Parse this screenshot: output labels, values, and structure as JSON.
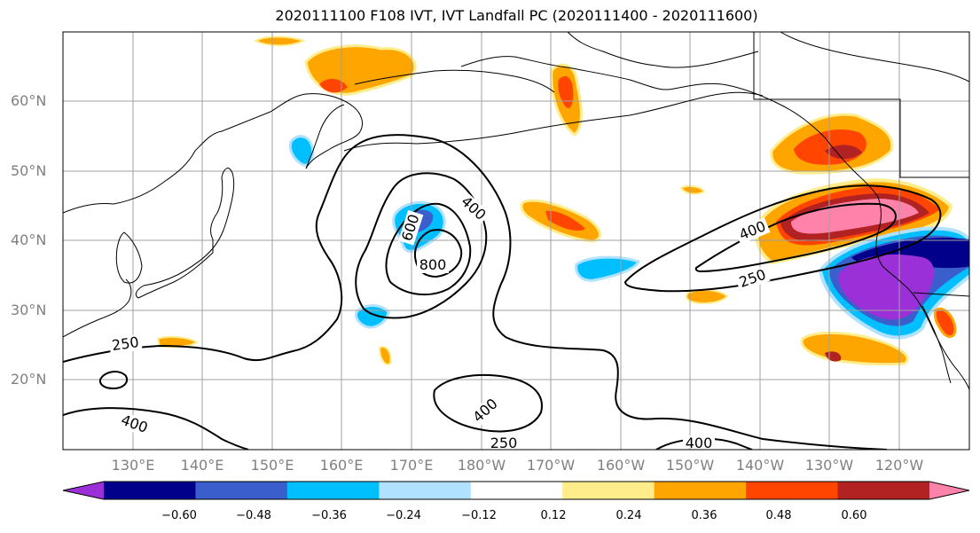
{
  "title": "2020111100 F108 IVT, IVT Landfall PC (2020111400 - 2020111600)",
  "lat_labels": [
    "60°N",
    "50°N",
    "40°N",
    "30°N",
    "20°N"
  ],
  "lon_labels": [
    "130°E",
    "140°E",
    "150°E",
    "160°E",
    "170°E",
    "180°W",
    "170°W",
    "160°W",
    "150°W",
    "140°W",
    "130°W",
    "120°W"
  ],
  "contour_labels": [
    "400",
    "600",
    "800",
    "400",
    "250",
    "250",
    "400",
    "400",
    "250",
    "400"
  ],
  "colorbar": {
    "colors": [
      "#9b30d8",
      "#00008b",
      "#3a5fcd",
      "#00bfff",
      "#b0e2ff",
      "#ffffff",
      "#ffec8b",
      "#ffa500",
      "#ff4500",
      "#b22222",
      "#ff82ab"
    ],
    "tick_labels": [
      "−0.60",
      "−0.48",
      "−0.36",
      "−0.24",
      "−0.12",
      "0.12",
      "0.24",
      "0.36",
      "0.48",
      "0.60"
    ]
  },
  "colors": {
    "land_outline": "#000000",
    "contour": "#000000",
    "grid": "#a0a0a0",
    "axis_label": "#808080"
  }
}
